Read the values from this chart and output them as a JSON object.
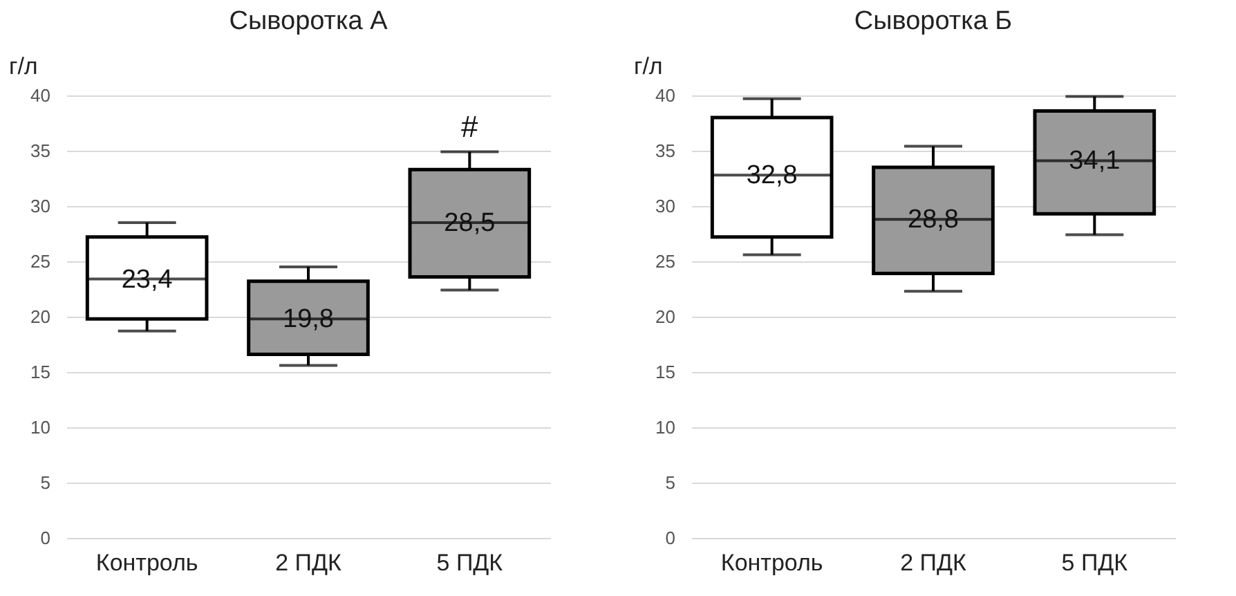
{
  "chart_data": [
    {
      "type": "box",
      "title": "Сыворотка А",
      "ylabel": "г/л",
      "categories": [
        "Контроль",
        "2 ПДК",
        "5 ПДК"
      ],
      "colors": [
        "#ffffff",
        "#9a9a9a",
        "#9a9a9a"
      ],
      "ylim": [
        0,
        40
      ],
      "yticks": [
        0,
        5,
        10,
        15,
        20,
        25,
        30,
        35,
        40
      ],
      "grid": "y",
      "annotations": [
        {
          "text": "23,4",
          "x": "Контроль",
          "y": 23.4
        },
        {
          "text": "19,8",
          "x": "2 ПДК",
          "y": 19.8
        },
        {
          "text": "28,5",
          "x": "5 ПДК",
          "y": 28.5
        },
        {
          "text": "#",
          "x": "5 ПДК",
          "y": 34.9
        }
      ],
      "boxes": [
        {
          "low": 18.7,
          "q1": 19.8,
          "median": 23.4,
          "q3": 27.2,
          "high": 28.5
        },
        {
          "low": 15.6,
          "q1": 16.6,
          "median": 19.8,
          "q3": 23.2,
          "high": 24.5
        },
        {
          "low": 22.4,
          "q1": 23.6,
          "median": 28.5,
          "q3": 33.3,
          "high": 34.9
        }
      ]
    },
    {
      "type": "box",
      "title": "Сыворотка Б",
      "ylabel": "г/л",
      "categories": [
        "Контроль",
        "2 ПДК",
        "5 ПДК"
      ],
      "colors": [
        "#ffffff",
        "#9a9a9a",
        "#9a9a9a"
      ],
      "ylim": [
        0,
        40
      ],
      "yticks": [
        0,
        5,
        10,
        15,
        20,
        25,
        30,
        35,
        40
      ],
      "grid": "y",
      "annotations": [
        {
          "text": "32,8",
          "x": "Контроль",
          "y": 32.8
        },
        {
          "text": "28,8",
          "x": "2 ПДК",
          "y": 28.8
        },
        {
          "text": "34,1",
          "x": "5 ПДК",
          "y": 34.1
        }
      ],
      "boxes": [
        {
          "low": 25.6,
          "q1": 27.2,
          "median": 32.8,
          "q3": 38.0,
          "high": 39.7
        },
        {
          "low": 22.3,
          "q1": 23.9,
          "median": 28.8,
          "q3": 33.5,
          "high": 35.4
        },
        {
          "low": 27.4,
          "q1": 29.3,
          "median": 34.1,
          "q3": 38.6,
          "high": 39.9
        }
      ]
    }
  ]
}
